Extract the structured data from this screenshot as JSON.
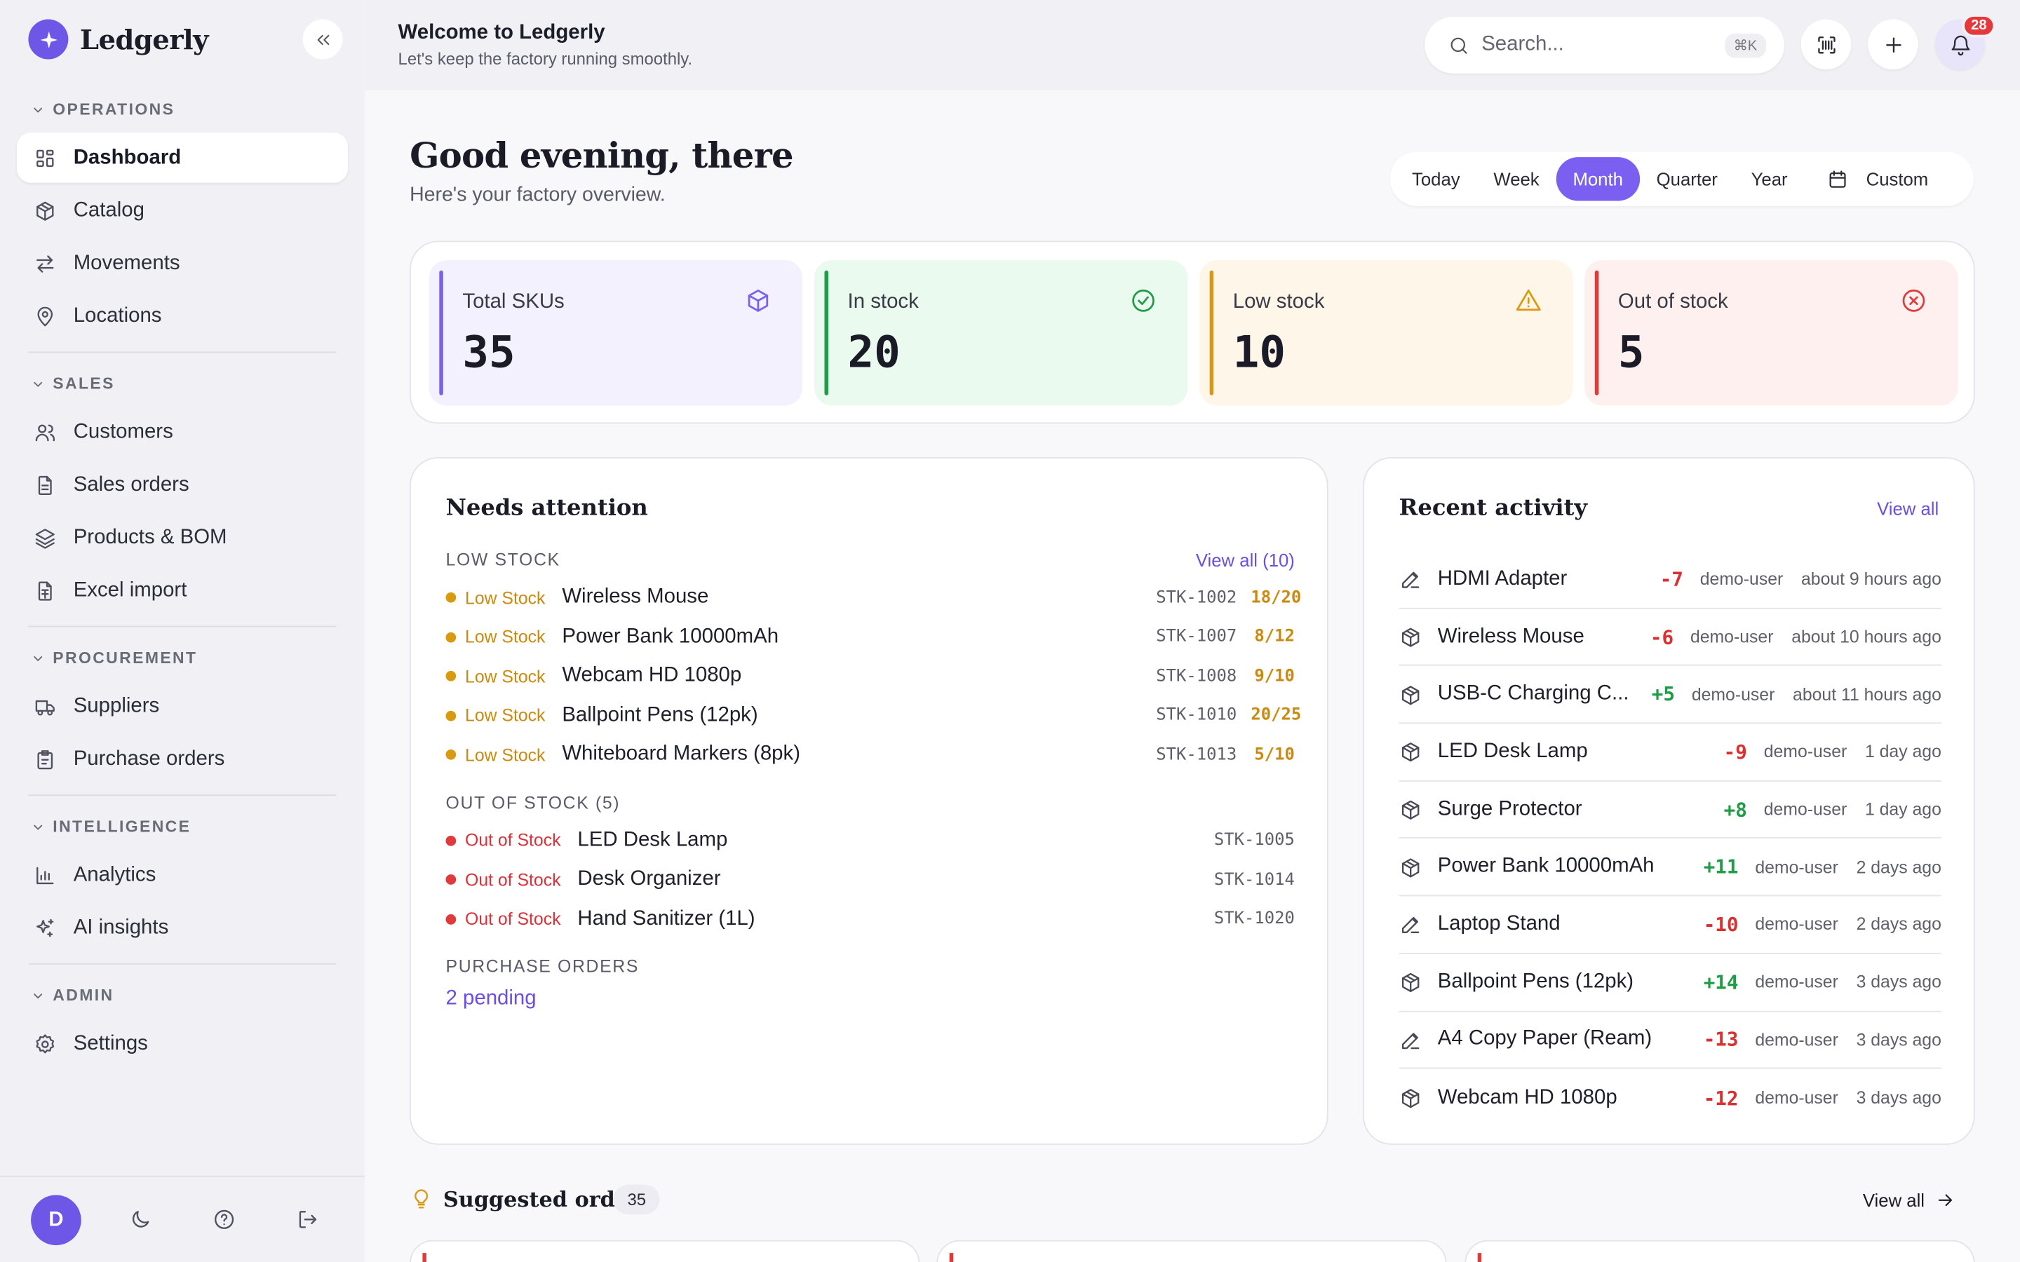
{
  "app": {
    "name": "Ledgerly"
  },
  "colors": {
    "accent": "#7b5ff0",
    "total": "#7b5ff0",
    "in_stock": "#1f9d46",
    "low": "#d99a10",
    "out": "#e03a3a"
  },
  "sidebar": {
    "sections": [
      {
        "title": "OPERATIONS",
        "items": [
          {
            "label": "Dashboard",
            "icon": "dashboard-icon"
          },
          {
            "label": "Catalog",
            "icon": "box-icon"
          },
          {
            "label": "Movements",
            "icon": "arrows-icon"
          },
          {
            "label": "Locations",
            "icon": "map-pin-icon"
          }
        ]
      },
      {
        "title": "SALES",
        "items": [
          {
            "label": "Customers",
            "icon": "users-icon"
          },
          {
            "label": "Sales orders",
            "icon": "document-icon"
          },
          {
            "label": "Products & BOM",
            "icon": "layers-icon"
          },
          {
            "label": "Excel import",
            "icon": "spreadsheet-icon"
          }
        ]
      },
      {
        "title": "PROCUREMENT",
        "items": [
          {
            "label": "Suppliers",
            "icon": "truck-icon"
          },
          {
            "label": "Purchase orders",
            "icon": "clipboard-icon"
          }
        ]
      },
      {
        "title": "INTELLIGENCE",
        "items": [
          {
            "label": "Analytics",
            "icon": "bar-chart-icon"
          },
          {
            "label": "AI insights",
            "icon": "sparkles-icon"
          }
        ]
      },
      {
        "title": "ADMIN",
        "items": [
          {
            "label": "Settings",
            "icon": "gear-icon"
          }
        ]
      }
    ],
    "footer": {
      "avatar_initial": "D"
    }
  },
  "header": {
    "title": "Welcome to Ledgerly",
    "subtitle": "Let's keep the factory running smoothly.",
    "search_placeholder": "Search...",
    "search_shortcut": "⌘K",
    "notification_count": "28"
  },
  "greeting": {
    "title": "Good evening, there",
    "subtitle": "Here's your factory overview."
  },
  "periods": [
    "Today",
    "Week",
    "Month",
    "Quarter",
    "Year",
    "Custom"
  ],
  "selected_period": "Month",
  "stats": [
    {
      "label": "Total SKUs",
      "value": "35"
    },
    {
      "label": "In stock",
      "value": "20"
    },
    {
      "label": "Low stock",
      "value": "10"
    },
    {
      "label": "Out of stock",
      "value": "5"
    }
  ],
  "attention": {
    "title": "Needs attention",
    "low_stock": {
      "heading": "LOW STOCK",
      "view_all": "View all (10)",
      "status": "Low Stock",
      "items": [
        {
          "name": "Wireless Mouse",
          "sku": "STK-1002",
          "qty": "18/20"
        },
        {
          "name": "Power Bank 10000mAh",
          "sku": "STK-1007",
          "qty": "8/12"
        },
        {
          "name": "Webcam HD 1080p",
          "sku": "STK-1008",
          "qty": "9/10"
        },
        {
          "name": "Ballpoint Pens (12pk)",
          "sku": "STK-1010",
          "qty": "20/25"
        },
        {
          "name": "Whiteboard Markers (8pk)",
          "sku": "STK-1013",
          "qty": "5/10"
        }
      ]
    },
    "out_of_stock": {
      "heading": "OUT OF STOCK (5)",
      "status": "Out of Stock",
      "items": [
        {
          "name": "LED Desk Lamp",
          "sku": "STK-1005"
        },
        {
          "name": "Desk Organizer",
          "sku": "STK-1014"
        },
        {
          "name": "Hand Sanitizer (1L)",
          "sku": "STK-1020"
        }
      ]
    },
    "purchase_orders": {
      "heading": "PURCHASE ORDERS",
      "pending": "2 pending"
    }
  },
  "recent": {
    "title": "Recent activity",
    "view_all": "View all",
    "items": [
      {
        "icon": "pencil-icon",
        "name": "HDMI Adapter",
        "delta": "-7",
        "user": "demo-user",
        "time": "about 9 hours ago"
      },
      {
        "icon": "box-icon",
        "name": "Wireless Mouse",
        "delta": "-6",
        "user": "demo-user",
        "time": "about 10 hours ago"
      },
      {
        "icon": "box-icon",
        "name": "USB-C Charging C...",
        "delta": "+5",
        "user": "demo-user",
        "time": "about 11 hours ago"
      },
      {
        "icon": "box-icon",
        "name": "LED Desk Lamp",
        "delta": "-9",
        "user": "demo-user",
        "time": "1 day ago"
      },
      {
        "icon": "box-icon",
        "name": "Surge Protector",
        "delta": "+8",
        "user": "demo-user",
        "time": "1 day ago"
      },
      {
        "icon": "box-icon",
        "name": "Power Bank 10000mAh",
        "delta": "+11",
        "user": "demo-user",
        "time": "2 days ago"
      },
      {
        "icon": "pencil-icon",
        "name": "Laptop Stand",
        "delta": "-10",
        "user": "demo-user",
        "time": "2 days ago"
      },
      {
        "icon": "box-icon",
        "name": "Ballpoint Pens (12pk)",
        "delta": "+14",
        "user": "demo-user",
        "time": "3 days ago"
      },
      {
        "icon": "pencil-icon",
        "name": "A4 Copy Paper (Ream)",
        "delta": "-13",
        "user": "demo-user",
        "time": "3 days ago"
      },
      {
        "icon": "box-icon",
        "name": "Webcam HD 1080p",
        "delta": "-12",
        "user": "demo-user",
        "time": "3 days ago"
      }
    ]
  },
  "suggested": {
    "title": "Suggested orders",
    "count": "35",
    "view_all": "View all"
  }
}
